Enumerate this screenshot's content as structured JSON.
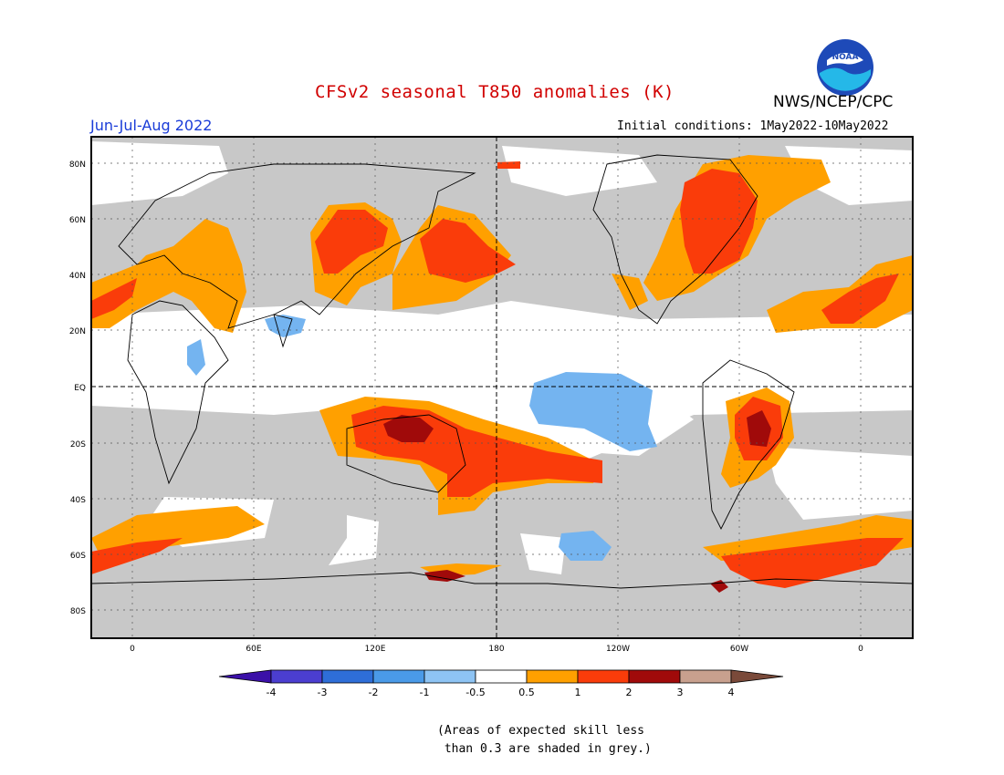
{
  "title": "CFSv2 seasonal T850 anomalies (K)",
  "organization": "NWS/NCEP/CPC",
  "logo_text": "NOAA",
  "period": "Jun-Jul-Aug 2022",
  "initial_conditions": "Initial conditions: 1May2022-10May2022",
  "lat_labels": [
    "80N",
    "60N",
    "40N",
    "20N",
    "EQ",
    "20S",
    "40S",
    "60S",
    "80S"
  ],
  "lon_labels": [
    "0",
    "60E",
    "120E",
    "180",
    "120W",
    "60W",
    "0"
  ],
  "colorbar": {
    "labels": [
      "-4",
      "-3",
      "-2",
      "-1",
      "-0.5",
      "0.5",
      "1",
      "2",
      "3",
      "4"
    ],
    "colors": [
      "#3b10a8",
      "#4b3ed0",
      "#2e6ed8",
      "#4a9ae8",
      "#8ec4f4",
      "#ffffff",
      "#ffa000",
      "#fa3c0a",
      "#a00a0a",
      "#c8a08e",
      "#7a4a3a"
    ]
  },
  "skill_note": "(Areas of expected skill less\n than 0.3 are shaded in grey.)",
  "colors": {
    "grey": "#c8c8c8",
    "ocean_white": "#ffffff",
    "orange": "#ffa000",
    "red": "#fa3c0a",
    "darkred": "#a00a0a",
    "lightblue": "#74b4f0"
  }
}
